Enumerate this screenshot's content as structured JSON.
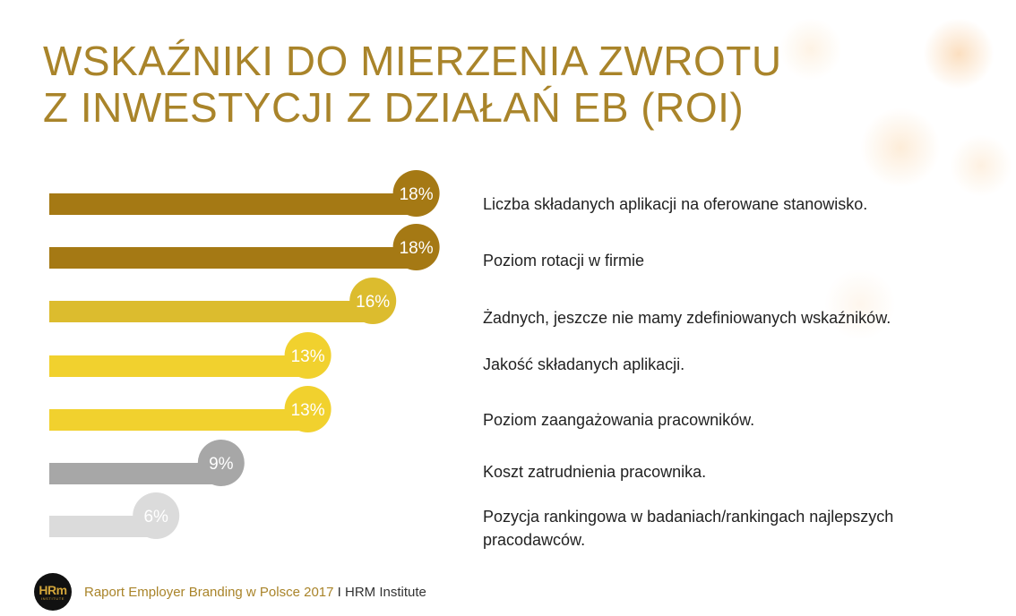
{
  "title": {
    "line1": "WSKAŹNIKI DO MIERZENIA ZWROTU",
    "line2": "Z INWESTYCJI Z DZIAŁAŃ EB (ROI)"
  },
  "chart_data": {
    "type": "bar",
    "orientation": "horizontal",
    "categories": [
      "Liczba składanych aplikacji na oferowane stanowisko.",
      "Poziom rotacji w firmie",
      "Żadnych, jeszcze nie mamy zdefiniowanych wskaźników.",
      "Jakość składanych aplikacji.",
      "Poziom zaangażowania pracowników.",
      "Koszt zatrudnienia pracownika.",
      "Pozycja rankingowa w badaniach/rankingach najlepszych pracodawców."
    ],
    "values": [
      18,
      18,
      16,
      13,
      13,
      9,
      6
    ],
    "value_labels": [
      "18%",
      "18%",
      "16%",
      "13%",
      "13%",
      "9%",
      "6%"
    ],
    "unit": "%",
    "bar_colors": [
      "#a57914",
      "#a57914",
      "#dcbc2e",
      "#f1d12e",
      "#f1d12e",
      "#a7a7a7",
      "#dbdbdb"
    ],
    "grid": false,
    "legend": "none"
  },
  "footer": {
    "logo_main": "HRm",
    "logo_sub": "INSTITUTE",
    "report": "Raport Employer Branding w Polsce 2017",
    "separator": " I ",
    "org": "HRM Institute"
  },
  "colors": {
    "accent": "#a9842a",
    "text": "#222222"
  }
}
